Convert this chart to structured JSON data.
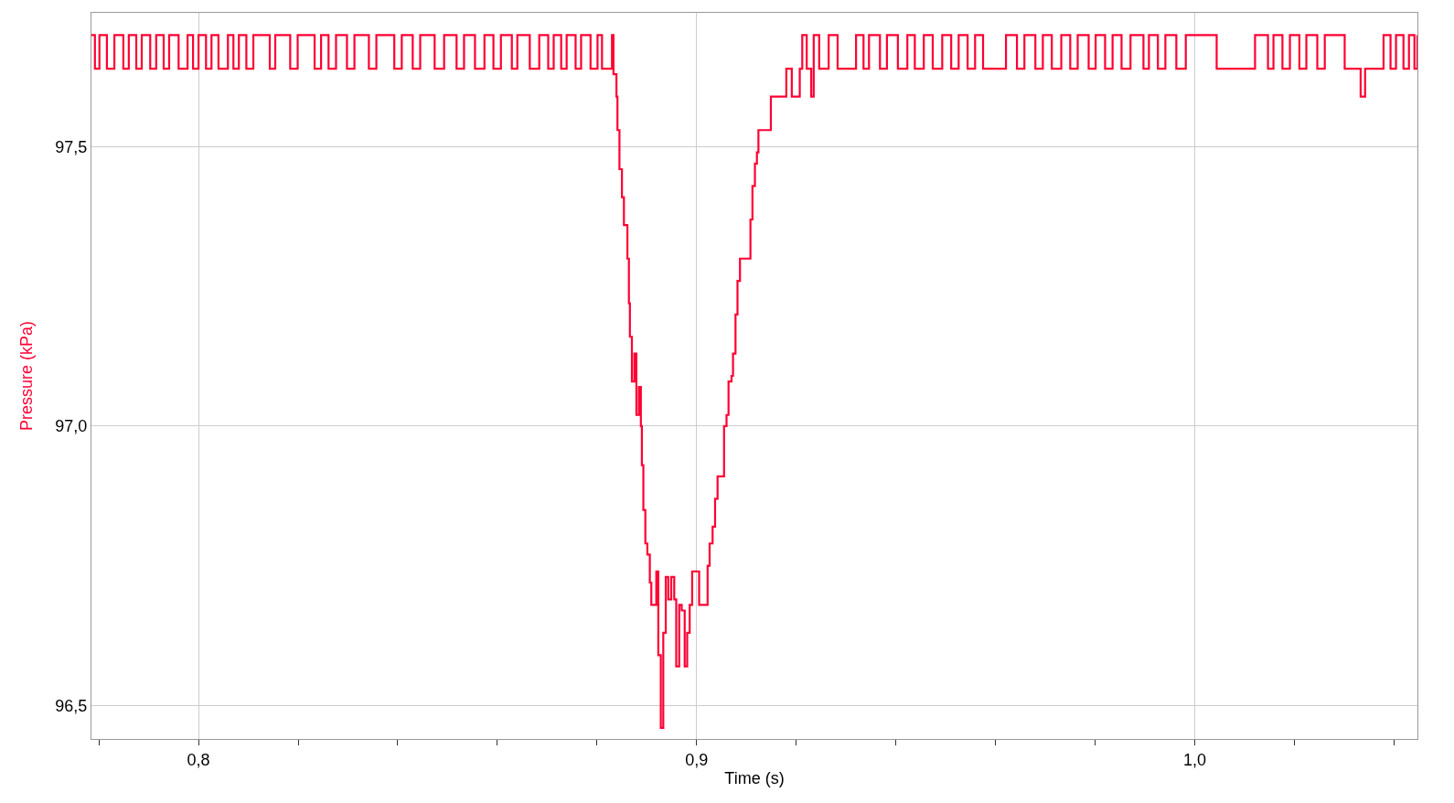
{
  "chart_data": {
    "type": "step",
    "xlabel": "Time (s)",
    "ylabel": "Pressure (kPa)",
    "xlim": [
      0.7785,
      1.0447
    ],
    "ylim": [
      96.44,
      97.74
    ],
    "xticks": [
      {
        "value": 0.78,
        "label": null
      },
      {
        "value": 0.8,
        "label": "0,8"
      },
      {
        "value": 0.82,
        "label": null
      },
      {
        "value": 0.84,
        "label": null
      },
      {
        "value": 0.86,
        "label": null
      },
      {
        "value": 0.88,
        "label": null
      },
      {
        "value": 0.9,
        "label": "0,9"
      },
      {
        "value": 0.92,
        "label": null
      },
      {
        "value": 0.94,
        "label": null
      },
      {
        "value": 0.96,
        "label": null
      },
      {
        "value": 0.98,
        "label": null
      },
      {
        "value": 1.0,
        "label": "1,0"
      },
      {
        "value": 1.02,
        "label": null
      },
      {
        "value": 1.04,
        "label": null
      }
    ],
    "yticks": [
      {
        "value": 96.5,
        "label": "96,5"
      },
      {
        "value": 97.0,
        "label": "97,0"
      },
      {
        "value": 97.5,
        "label": "97,5"
      }
    ],
    "grid": true,
    "marker": "none",
    "line_style": "solid",
    "series": [
      {
        "color": "#ff0033",
        "x": [
          0.7785,
          0.7792,
          0.7801,
          0.7816,
          0.7831,
          0.7849,
          0.786,
          0.7875,
          0.7886,
          0.7903,
          0.7915,
          0.793,
          0.7941,
          0.796,
          0.7978,
          0.7989,
          0.8,
          0.8015,
          0.8026,
          0.804,
          0.8059,
          0.807,
          0.8081,
          0.8096,
          0.811,
          0.8143,
          0.8154,
          0.8184,
          0.8199,
          0.8233,
          0.8246,
          0.8261,
          0.8276,
          0.8298,
          0.8313,
          0.8342,
          0.8357,
          0.8393,
          0.8408,
          0.843,
          0.8445,
          0.8474,
          0.8493,
          0.8518,
          0.8533,
          0.8555,
          0.8574,
          0.8592,
          0.8607,
          0.8629,
          0.864,
          0.8665,
          0.8684,
          0.8702,
          0.8713,
          0.8728,
          0.8739,
          0.8757,
          0.8768,
          0.8787,
          0.8801,
          0.8806,
          0.881,
          0.8824,
          0.883,
          0.8833,
          0.8839,
          0.8841,
          0.8845,
          0.885,
          0.8854,
          0.8859,
          0.8861,
          0.8864,
          0.8866,
          0.887,
          0.8875,
          0.8879,
          0.8884,
          0.8888,
          0.889,
          0.8893,
          0.8897,
          0.8901,
          0.8906,
          0.8909,
          0.8915,
          0.8919,
          0.8923,
          0.8928,
          0.8933,
          0.8938,
          0.8943,
          0.8949,
          0.8955,
          0.8959,
          0.8965,
          0.897,
          0.8976,
          0.8981,
          0.8986,
          0.8991,
          0.9,
          0.9005,
          0.9016,
          0.9022,
          0.9026,
          0.9032,
          0.9037,
          0.9042,
          0.9051,
          0.9055,
          0.906,
          0.9064,
          0.907,
          0.9073,
          0.9078,
          0.9082,
          0.9087,
          0.9091,
          0.9103,
          0.9108,
          0.9112,
          0.9117,
          0.9121,
          0.9124,
          0.9144,
          0.9149,
          0.9176,
          0.918,
          0.9185,
          0.9191,
          0.9201,
          0.9207,
          0.9212,
          0.9216,
          0.9221,
          0.923,
          0.9235,
          0.9246,
          0.9265,
          0.9283,
          0.932,
          0.9335,
          0.9346,
          0.9368,
          0.9382,
          0.9404,
          0.9423,
          0.9438,
          0.9456,
          0.9474,
          0.9493,
          0.9511,
          0.9526,
          0.9544,
          0.9559,
          0.9575,
          0.9621,
          0.9643,
          0.9658,
          0.968,
          0.9695,
          0.9713,
          0.9732,
          0.975,
          0.9765,
          0.9787,
          0.9801,
          0.982,
          0.9835,
          0.9853,
          0.9871,
          0.9897,
          0.9908,
          0.9926,
          0.9941,
          0.9963,
          0.9982,
          1.0044,
          1.0121,
          1.0147,
          1.0158,
          1.0176,
          1.0191,
          1.021,
          1.0224,
          1.0246,
          1.0261,
          1.0301,
          1.0333,
          1.0342,
          1.0379,
          1.0393,
          1.0404,
          1.0419,
          1.043,
          1.0441,
          1.0447
        ],
        "values": [
          97.7,
          97.64,
          97.7,
          97.64,
          97.7,
          97.64,
          97.7,
          97.64,
          97.7,
          97.64,
          97.7,
          97.64,
          97.7,
          97.64,
          97.7,
          97.64,
          97.7,
          97.64,
          97.7,
          97.64,
          97.7,
          97.64,
          97.7,
          97.64,
          97.7,
          97.64,
          97.7,
          97.64,
          97.7,
          97.64,
          97.7,
          97.64,
          97.7,
          97.64,
          97.7,
          97.64,
          97.7,
          97.64,
          97.7,
          97.64,
          97.7,
          97.64,
          97.7,
          97.64,
          97.7,
          97.64,
          97.7,
          97.64,
          97.7,
          97.64,
          97.7,
          97.64,
          97.7,
          97.64,
          97.7,
          97.64,
          97.7,
          97.64,
          97.7,
          97.64,
          97.7,
          97.7,
          97.64,
          97.64,
          97.7,
          97.63,
          97.59,
          97.53,
          97.46,
          97.41,
          97.36,
          97.36,
          97.3,
          97.22,
          97.16,
          97.08,
          97.13,
          97.02,
          97.07,
          97.0,
          96.93,
          96.85,
          96.79,
          96.77,
          96.72,
          96.68,
          96.68,
          96.74,
          96.59,
          96.46,
          96.63,
          96.73,
          96.69,
          96.73,
          96.69,
          96.57,
          96.68,
          96.67,
          96.57,
          96.63,
          96.68,
          96.74,
          96.74,
          96.68,
          96.68,
          96.75,
          96.79,
          96.82,
          96.87,
          96.91,
          96.91,
          97.0,
          97.02,
          97.08,
          97.09,
          97.13,
          97.2,
          97.26,
          97.3,
          97.3,
          97.3,
          97.37,
          97.43,
          97.47,
          97.49,
          97.53,
          97.53,
          97.59,
          97.59,
          97.64,
          97.64,
          97.59,
          97.59,
          97.64,
          97.7,
          97.7,
          97.64,
          97.59,
          97.7,
          97.64,
          97.7,
          97.64,
          97.7,
          97.64,
          97.7,
          97.64,
          97.7,
          97.64,
          97.7,
          97.64,
          97.7,
          97.64,
          97.7,
          97.64,
          97.7,
          97.64,
          97.7,
          97.64,
          97.7,
          97.64,
          97.7,
          97.64,
          97.7,
          97.64,
          97.7,
          97.64,
          97.7,
          97.64,
          97.7,
          97.64,
          97.7,
          97.64,
          97.7,
          97.64,
          97.7,
          97.64,
          97.7,
          97.64,
          97.7,
          97.64,
          97.7,
          97.64,
          97.7,
          97.64,
          97.7,
          97.64,
          97.7,
          97.64,
          97.7,
          97.64,
          97.59,
          97.64,
          97.7,
          97.64,
          97.7,
          97.64,
          97.7,
          97.64,
          97.7
        ]
      }
    ]
  }
}
